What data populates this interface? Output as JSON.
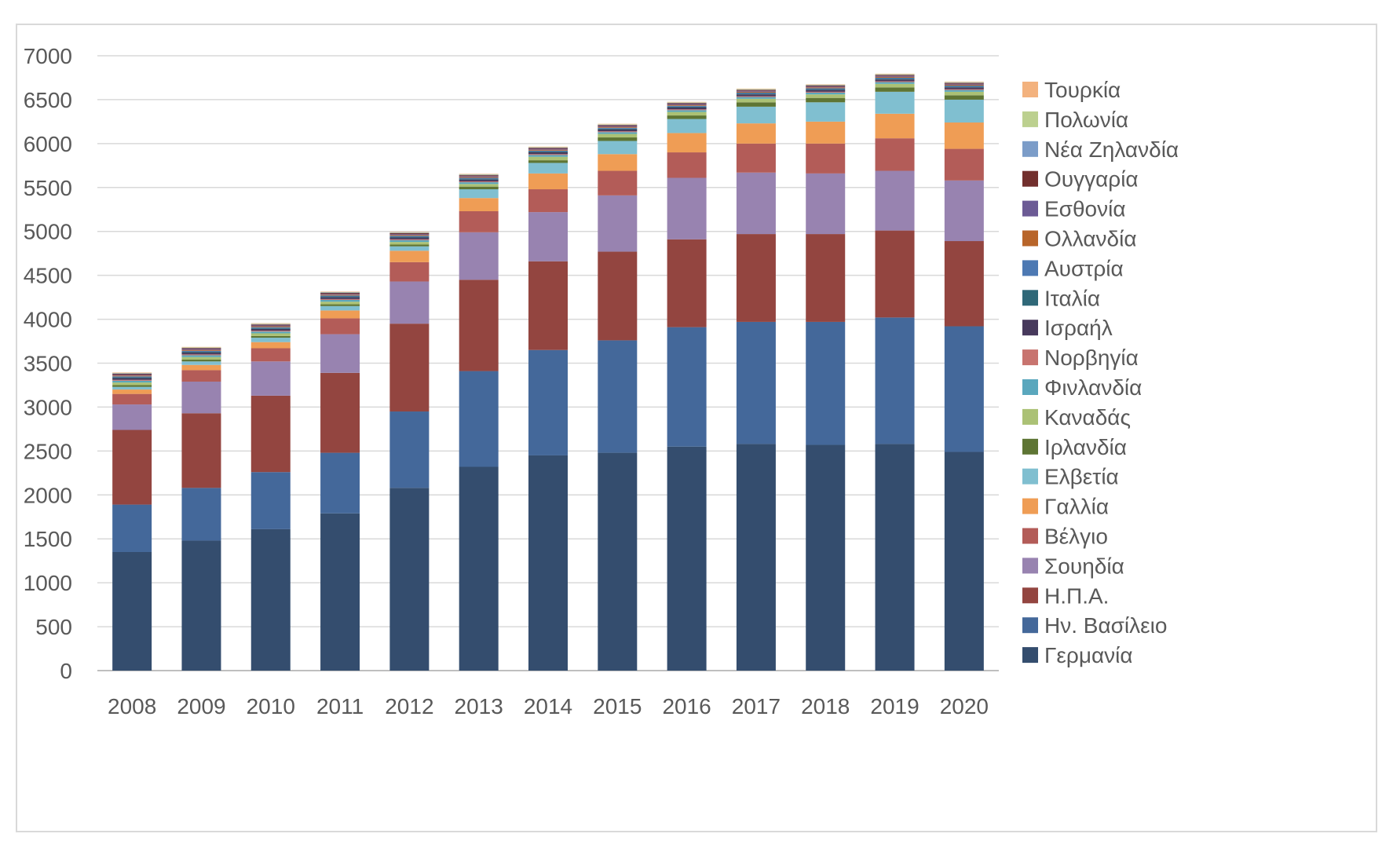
{
  "chart_data": {
    "type": "bar",
    "stacked": true,
    "title": "",
    "xlabel": "",
    "ylabel": "",
    "ylim": [
      0,
      7000
    ],
    "yticks": [
      0,
      500,
      1000,
      1500,
      2000,
      2500,
      3000,
      3500,
      4000,
      4500,
      5000,
      5500,
      6000,
      6500,
      7000
    ],
    "grid": true,
    "legend_position": "right",
    "categories": [
      "2008",
      "2009",
      "2010",
      "2011",
      "2012",
      "2013",
      "2014",
      "2015",
      "2016",
      "2017",
      "2018",
      "2019",
      "2020"
    ],
    "series": [
      {
        "name": "Γερμανία",
        "color": "#344d6e",
        "values": [
          1350,
          1480,
          1610,
          1790,
          2080,
          2320,
          2450,
          2480,
          2550,
          2580,
          2570,
          2580,
          2490
        ]
      },
      {
        "name": "Ην. Βασίλειο",
        "color": "#44689a",
        "values": [
          540,
          600,
          650,
          690,
          870,
          1090,
          1200,
          1280,
          1360,
          1390,
          1400,
          1440,
          1430
        ]
      },
      {
        "name": "Η.Π.Α.",
        "color": "#934540",
        "values": [
          850,
          850,
          870,
          910,
          1000,
          1040,
          1010,
          1010,
          1000,
          1000,
          1000,
          990,
          970
        ]
      },
      {
        "name": "Σουηδία",
        "color": "#9883b0",
        "values": [
          290,
          360,
          390,
          440,
          480,
          540,
          560,
          640,
          700,
          700,
          690,
          680,
          690
        ]
      },
      {
        "name": "Βέλγιο",
        "color": "#b35c58",
        "values": [
          120,
          130,
          150,
          180,
          220,
          240,
          260,
          280,
          290,
          330,
          340,
          370,
          360
        ]
      },
      {
        "name": "Γαλλία",
        "color": "#ef9d55",
        "values": [
          50,
          60,
          70,
          90,
          130,
          150,
          180,
          190,
          220,
          230,
          250,
          280,
          300
        ]
      },
      {
        "name": "Ελβετία",
        "color": "#80bfd0",
        "values": [
          30,
          40,
          50,
          50,
          50,
          100,
          120,
          150,
          160,
          190,
          220,
          250,
          260
        ]
      },
      {
        "name": "Ιρλανδία",
        "color": "#5e7534",
        "values": [
          20,
          20,
          20,
          20,
          20,
          30,
          30,
          40,
          40,
          50,
          50,
          50,
          50
        ]
      },
      {
        "name": "Καναδάς",
        "color": "#abc175",
        "values": [
          30,
          30,
          30,
          30,
          30,
          30,
          40,
          40,
          40,
          40,
          40,
          40,
          40
        ]
      },
      {
        "name": "Φινλανδία",
        "color": "#5aa7bd",
        "values": [
          20,
          20,
          20,
          20,
          20,
          20,
          20,
          20,
          20,
          20,
          20,
          20,
          20
        ]
      },
      {
        "name": "Νορβηγία",
        "color": "#c8746f",
        "values": [
          10,
          10,
          10,
          10,
          10,
          10,
          10,
          10,
          10,
          10,
          10,
          10,
          10
        ]
      },
      {
        "name": "Ισραήλ",
        "color": "#47395c",
        "values": [
          20,
          20,
          20,
          20,
          20,
          20,
          20,
          20,
          20,
          20,
          20,
          20,
          20
        ]
      },
      {
        "name": "Ιταλία",
        "color": "#2f6878",
        "values": [
          10,
          10,
          10,
          10,
          10,
          10,
          10,
          10,
          10,
          10,
          10,
          10,
          10
        ]
      },
      {
        "name": "Αυστρία",
        "color": "#4d79b3",
        "values": [
          10,
          10,
          10,
          10,
          10,
          10,
          10,
          10,
          10,
          10,
          10,
          10,
          10
        ]
      },
      {
        "name": "Ολλανδία",
        "color": "#b8652a",
        "values": [
          10,
          10,
          10,
          10,
          10,
          10,
          10,
          10,
          10,
          10,
          10,
          10,
          10
        ]
      },
      {
        "name": "Εσθονία",
        "color": "#6c5b95",
        "values": [
          10,
          10,
          10,
          10,
          10,
          10,
          10,
          10,
          10,
          10,
          10,
          10,
          10
        ]
      },
      {
        "name": "Ουγγαρία",
        "color": "#722f2d",
        "values": [
          10,
          10,
          10,
          10,
          10,
          10,
          10,
          10,
          10,
          10,
          10,
          10,
          10
        ]
      },
      {
        "name": "Νέα Ζηλανδία",
        "color": "#7b9cc8",
        "values": [
          5,
          5,
          5,
          5,
          5,
          5,
          5,
          5,
          5,
          5,
          5,
          5,
          5
        ]
      },
      {
        "name": "Πολωνία",
        "color": "#bcd08f",
        "values": [
          5,
          5,
          5,
          5,
          5,
          5,
          5,
          5,
          5,
          5,
          5,
          5,
          5
        ]
      },
      {
        "name": "Τουρκία",
        "color": "#f3b27e",
        "values": [
          5,
          5,
          5,
          5,
          5,
          5,
          5,
          5,
          5,
          5,
          5,
          5,
          5
        ]
      }
    ]
  }
}
